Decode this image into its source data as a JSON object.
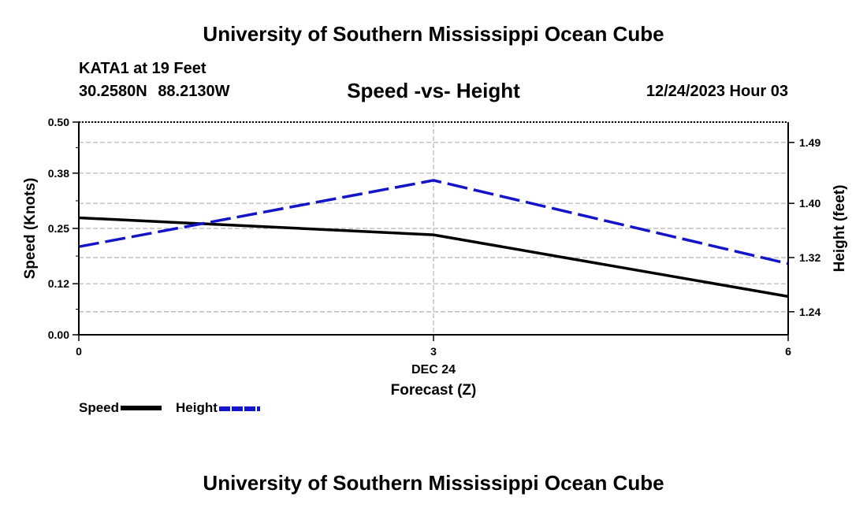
{
  "header": {
    "title": "University of Southern Mississippi Ocean Cube",
    "station": "KATA1 at 19 Feet",
    "latitude": "30.2580N",
    "longitude": "88.2130W",
    "subtitle": "Speed -vs- Height",
    "datestamp": "12/24/2023 Hour 03"
  },
  "footer": {
    "title": "University of Southern Mississippi Ocean Cube"
  },
  "legend": {
    "speed_label": "Speed",
    "height_label": "Height"
  },
  "colors": {
    "speed": "#000000",
    "height": "#1414c8",
    "grid": "#b4b4b4"
  },
  "chart_data": {
    "type": "line",
    "title": "Speed -vs- Height",
    "xlabel": "Forecast (Z)",
    "x_day_label": "DEC 24",
    "x": [
      0,
      3,
      6
    ],
    "x_tick_labels": [
      "0",
      "3",
      "6"
    ],
    "xlim": [
      0,
      6
    ],
    "ylabel": "Speed (Knots)",
    "ylim": [
      0,
      0.5
    ],
    "y_ticks": [
      0.0,
      0.12,
      0.25,
      0.38,
      0.5
    ],
    "y_tick_labels": [
      "0.00",
      "0.12",
      "0.25",
      "0.38",
      "0.50"
    ],
    "y2label": "Height (feet)",
    "y2lim": [
      1.206,
      1.52
    ],
    "y2_ticks": [
      1.24,
      1.32,
      1.4,
      1.49
    ],
    "y2_tick_labels": [
      "1.24",
      "1.32",
      "1.40",
      "1.49"
    ],
    "series": [
      {
        "name": "Speed",
        "axis": "left",
        "style": "solid",
        "values": [
          0.275,
          0.235,
          0.09
        ]
      },
      {
        "name": "Height",
        "axis": "right",
        "style": "dashed",
        "values": [
          1.336,
          1.434,
          1.311
        ]
      }
    ],
    "grid": true
  }
}
